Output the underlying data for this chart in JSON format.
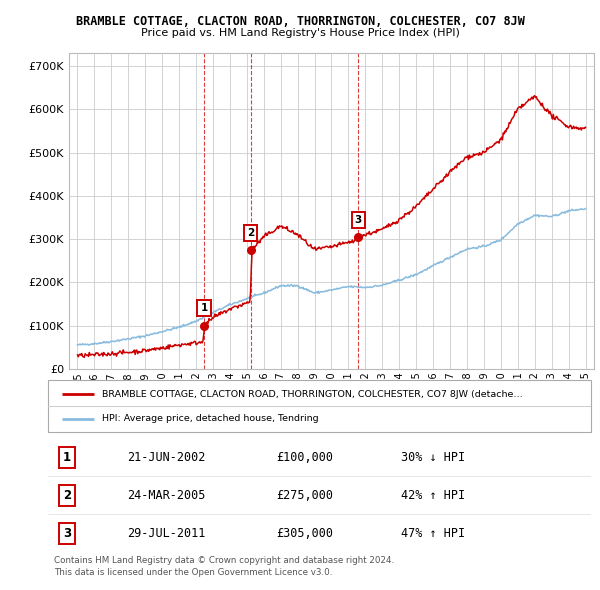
{
  "title": "BRAMBLE COTTAGE, CLACTON ROAD, THORRINGTON, COLCHESTER, CO7 8JW",
  "subtitle": "Price paid vs. HM Land Registry's House Price Index (HPI)",
  "ylabel_values": [
    "£0",
    "£100K",
    "£200K",
    "£300K",
    "£400K",
    "£500K",
    "£600K",
    "£700K"
  ],
  "yticks": [
    0,
    100000,
    200000,
    300000,
    400000,
    500000,
    600000,
    700000
  ],
  "ylim": [
    0,
    730000
  ],
  "xlim_start": 1994.5,
  "xlim_end": 2025.5,
  "red_color": "#cc0000",
  "blue_color": "#88bbdd",
  "dashed_line_color": "#cc0000",
  "sale_markers": [
    {
      "year": 2002.47,
      "price": 100000,
      "label": "1"
    },
    {
      "year": 2005.23,
      "price": 275000,
      "label": "2"
    },
    {
      "year": 2011.57,
      "price": 305000,
      "label": "3"
    }
  ],
  "vline_years": [
    2002.47,
    2005.23,
    2011.57
  ],
  "table_rows": [
    {
      "num": "1",
      "date": "21-JUN-2002",
      "price": "£100,000",
      "hpi": "30% ↓ HPI"
    },
    {
      "num": "2",
      "date": "24-MAR-2005",
      "price": "£275,000",
      "hpi": "42% ↑ HPI"
    },
    {
      "num": "3",
      "date": "29-JUL-2011",
      "price": "£305,000",
      "hpi": "47% ↑ HPI"
    }
  ],
  "legend_line1": "BRAMBLE COTTAGE, CLACTON ROAD, THORRINGTON, COLCHESTER, CO7 8JW (detache…",
  "legend_line2": "HPI: Average price, detached house, Tendring",
  "footer1": "Contains HM Land Registry data © Crown copyright and database right 2024.",
  "footer2": "This data is licensed under the Open Government Licence v3.0.",
  "xtick_years": [
    1995,
    1996,
    1997,
    1998,
    1999,
    2000,
    2001,
    2002,
    2003,
    2004,
    2005,
    2006,
    2007,
    2008,
    2009,
    2010,
    2011,
    2012,
    2013,
    2014,
    2015,
    2016,
    2017,
    2018,
    2019,
    2020,
    2021,
    2022,
    2023,
    2024,
    2025
  ],
  "hpi_base_years": [
    1995,
    1996,
    1997,
    1998,
    1999,
    2000,
    2001,
    2002,
    2003,
    2004,
    2005,
    2006,
    2007,
    2008,
    2009,
    2010,
    2011,
    2012,
    2013,
    2014,
    2015,
    2016,
    2017,
    2018,
    2019,
    2020,
    2021,
    2022,
    2023,
    2024,
    2025
  ],
  "hpi_base_vals": [
    55000,
    58000,
    63000,
    69000,
    76000,
    86000,
    96000,
    110000,
    130000,
    148000,
    162000,
    175000,
    192000,
    192000,
    175000,
    182000,
    190000,
    188000,
    193000,
    205000,
    218000,
    238000,
    258000,
    277000,
    283000,
    298000,
    335000,
    355000,
    352000,
    365000,
    370000
  ],
  "red_base_years": [
    1995,
    1996,
    1997,
    1998,
    1999,
    2000,
    2001,
    2002.4,
    2002.5,
    2003,
    2004,
    2005.2,
    2005.3,
    2006,
    2007,
    2008,
    2009,
    2010,
    2011.55,
    2011.6,
    2012,
    2013,
    2014,
    2015,
    2016,
    2017,
    2018,
    2019,
    2020,
    2021,
    2022,
    2023,
    2024,
    2025
  ],
  "red_base_vals": [
    30000,
    32000,
    35000,
    38000,
    42000,
    48000,
    55000,
    62000,
    100000,
    118000,
    138000,
    155000,
    275000,
    305000,
    330000,
    310000,
    275000,
    282000,
    298000,
    305000,
    310000,
    322000,
    345000,
    375000,
    415000,
    455000,
    490000,
    500000,
    530000,
    600000,
    630000,
    585000,
    560000,
    555000
  ]
}
